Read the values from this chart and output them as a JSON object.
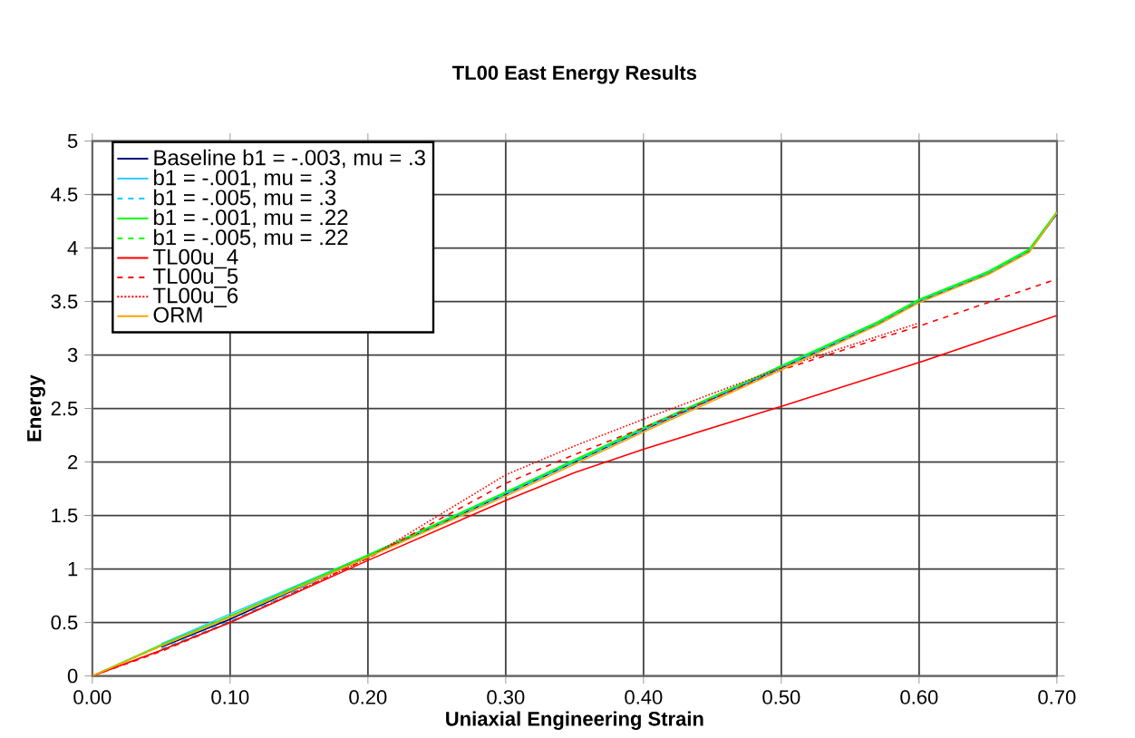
{
  "chart_data": {
    "type": "line",
    "title": "TL00 East Energy Results",
    "xlabel": "Uniaxial Engineering Strain",
    "ylabel": "Energy",
    "xlim": [
      0,
      0.7
    ],
    "ylim": [
      0,
      5
    ],
    "xticks": [
      {
        "value": 0,
        "label": "0.00"
      },
      {
        "value": 0.1,
        "label": "0.10"
      },
      {
        "value": 0.2,
        "label": "0.20"
      },
      {
        "value": 0.3,
        "label": "0.30"
      },
      {
        "value": 0.4,
        "label": "0.40"
      },
      {
        "value": 0.5,
        "label": "0.50"
      },
      {
        "value": 0.6,
        "label": "0.60"
      },
      {
        "value": 0.7,
        "label": "0.70"
      }
    ],
    "yticks": [
      0,
      0.5,
      1,
      1.5,
      2,
      2.5,
      3,
      3.5,
      4,
      4.5,
      5
    ],
    "grid": true,
    "legend": "top left",
    "marker": "none",
    "x": [
      0,
      0.05,
      0.1,
      0.2,
      0.3,
      0.4,
      0.5,
      0.57,
      0.6,
      0.65,
      0.68,
      0.7
    ],
    "series": [
      {
        "name": "Baseline b1 = -.003, mu = .3",
        "color": "#000080",
        "line_style": "solid",
        "values": [
          null,
          0.27,
          0.53,
          1.12,
          1.7,
          2.3,
          2.88,
          3.29,
          3.5,
          3.76,
          3.97,
          4.32
        ]
      },
      {
        "name": "b1 = -.001, mu = .3",
        "color": "#33ccff",
        "line_style": "solid",
        "values": [
          null,
          0.3,
          0.58,
          1.13,
          1.71,
          2.31,
          2.89,
          3.3,
          3.51,
          3.77,
          3.98,
          4.33
        ]
      },
      {
        "name": "b1 = -.005, mu = .3",
        "color": "#00ccff",
        "line_style": "dashed",
        "values": [
          null,
          0.25,
          0.51,
          1.12,
          1.7,
          2.3,
          2.88,
          3.29,
          3.5,
          3.76,
          3.97,
          4.32
        ]
      },
      {
        "name": "b1 = -.001, mu = .22",
        "color": "#00ff00",
        "line_style": "solid",
        "values": [
          0,
          0.29,
          0.56,
          1.13,
          1.72,
          2.32,
          2.9,
          3.31,
          3.52,
          3.78,
          3.99,
          4.34
        ]
      },
      {
        "name": "b1 = -.005, mu = .22",
        "color": "#00ff00",
        "line_style": "dashed",
        "values": [
          0,
          0.28,
          0.56,
          1.12,
          1.71,
          2.31,
          2.89,
          3.3,
          3.51,
          3.77,
          3.98,
          4.33
        ]
      },
      {
        "name": "TL00u_4",
        "color": "#ff0000",
        "line_style": "solid",
        "x": [
          0,
          0.05,
          0.1,
          0.2,
          0.3,
          0.35,
          0.4,
          0.5,
          0.6,
          0.7
        ],
        "values": [
          0,
          0.24,
          0.5,
          1.08,
          1.64,
          1.9,
          2.12,
          2.52,
          2.93,
          3.37
        ]
      },
      {
        "name": "TL00u_5",
        "color": "#ff0000",
        "line_style": "dashed",
        "x": [
          0,
          0.05,
          0.1,
          0.2,
          0.3,
          0.35,
          0.4,
          0.5,
          0.57,
          0.6,
          0.7
        ],
        "values": [
          0,
          0.23,
          0.5,
          1.1,
          1.8,
          2.07,
          2.32,
          2.86,
          3.15,
          3.27,
          3.71
        ]
      },
      {
        "name": "TL00u_6",
        "color": "#ff0000",
        "line_style": "dotted",
        "x": [
          0,
          0.05,
          0.1,
          0.2,
          0.3,
          0.35,
          0.4,
          0.5,
          0.6
        ],
        "values": [
          0,
          0.24,
          0.5,
          1.1,
          1.88,
          2.15,
          2.4,
          2.88,
          3.3
        ]
      },
      {
        "name": "ORM",
        "color": "#ffa500",
        "line_style": "solid",
        "values": [
          0,
          0.28,
          0.55,
          1.11,
          1.68,
          2.28,
          2.86,
          3.28,
          3.49,
          3.75,
          3.96,
          4.33
        ]
      }
    ]
  }
}
